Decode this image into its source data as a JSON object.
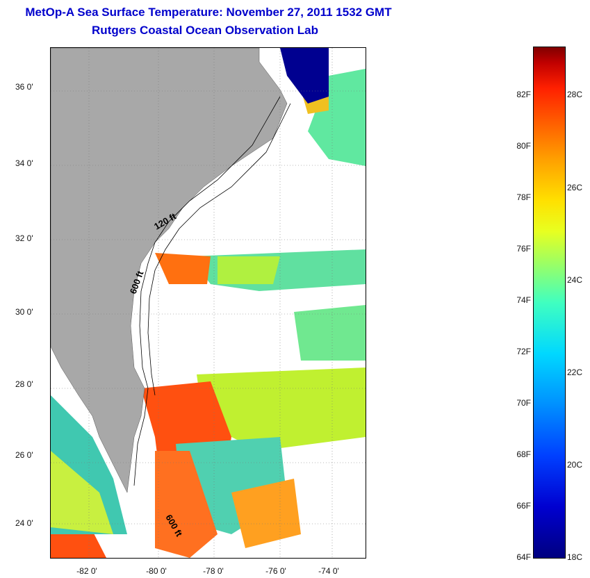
{
  "header": {
    "title": "MetOp-A Sea Surface Temperature:  November 27, 2011 1532 GMT",
    "subtitle": "Rutgers Coastal Ocean Observation Lab"
  },
  "map": {
    "lat_labels": [
      "36 0'",
      "34 0'",
      "32 0'",
      "30 0'",
      "28 0'",
      "26 0'",
      "24 0'"
    ],
    "lon_labels": [
      "-82 0'",
      "-80 0'",
      "-78 0'",
      "-76 0'",
      "-74 0'"
    ],
    "contour_labels": [
      "120 ft",
      "600 ft",
      "600 ft"
    ],
    "colors": {
      "land": "#a8a8a8",
      "cloud": "#ffffff"
    }
  },
  "colorbar": {
    "f_labels": [
      "82F",
      "80F",
      "78F",
      "76F",
      "74F",
      "72F",
      "70F",
      "68F",
      "66F",
      "64F"
    ],
    "c_labels": [
      "28C",
      "26C",
      "24C",
      "22C",
      "20C",
      "18C"
    ]
  }
}
